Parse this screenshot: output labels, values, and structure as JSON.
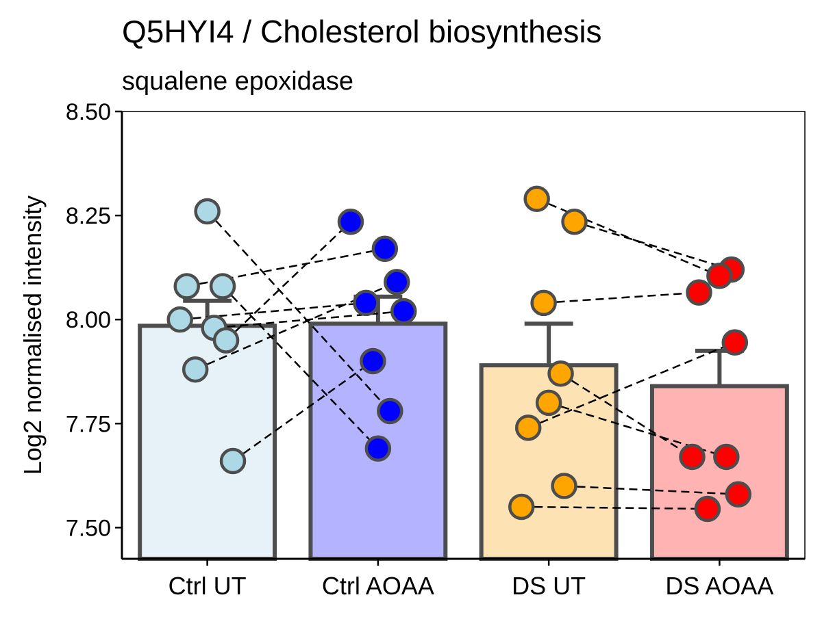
{
  "chart_data": {
    "type": "bar",
    "title": "Q5HYI4 / Cholesterol biosynthesis",
    "subtitle": "squalene epoxidase",
    "ylabel": "Log2 normalised intensity",
    "xlabel": "",
    "ylim": [
      7.425,
      8.5
    ],
    "yticks": [
      7.5,
      7.75,
      8.0,
      8.25,
      8.5
    ],
    "ytick_labels": [
      "7.50",
      "7.75",
      "8.00",
      "8.25",
      "8.50"
    ],
    "categories": [
      "Ctrl UT",
      "Ctrl AOAA",
      "DS UT",
      "DS AOAA"
    ],
    "bar_colors": [
      "#e6f2f8",
      "#b3b3ff",
      "#fde3b3",
      "#ffb3b3"
    ],
    "point_colors": [
      "#add8e6",
      "#0000ff",
      "#ffa500",
      "#ff0000"
    ],
    "bar_values": [
      7.985,
      7.99,
      7.89,
      7.84
    ],
    "error_upper": [
      8.045,
      8.055,
      7.99,
      7.925
    ],
    "points": [
      [
        8.26,
        8.08,
        8.08,
        8.0,
        7.98,
        7.95,
        7.88,
        7.66
      ],
      [
        8.235,
        8.17,
        8.09,
        8.04,
        8.02,
        7.9,
        7.78,
        7.69
      ],
      [
        8.29,
        8.235,
        8.04,
        7.87,
        7.8,
        7.74,
        7.6,
        7.55
      ],
      [
        8.12,
        8.105,
        8.065,
        7.945,
        7.67,
        7.67,
        7.58,
        7.545
      ]
    ],
    "pairings": [
      {
        "from_group": 0,
        "from_point": 0,
        "to_group": 1,
        "to_point": 6
      },
      {
        "from_group": 0,
        "from_point": 1,
        "to_group": 1,
        "to_point": 1
      },
      {
        "from_group": 0,
        "from_point": 2,
        "to_group": 1,
        "to_point": 7
      },
      {
        "from_group": 0,
        "from_point": 3,
        "to_group": 1,
        "to_point": 3
      },
      {
        "from_group": 0,
        "from_point": 4,
        "to_group": 1,
        "to_point": 4
      },
      {
        "from_group": 0,
        "from_point": 5,
        "to_group": 1,
        "to_point": 0
      },
      {
        "from_group": 0,
        "from_point": 6,
        "to_group": 1,
        "to_point": 2
      },
      {
        "from_group": 0,
        "from_point": 7,
        "to_group": 1,
        "to_point": 5
      },
      {
        "from_group": 2,
        "from_point": 0,
        "to_group": 3,
        "to_point": 1
      },
      {
        "from_group": 2,
        "from_point": 1,
        "to_group": 3,
        "to_point": 0
      },
      {
        "from_group": 2,
        "from_point": 2,
        "to_group": 3,
        "to_point": 2
      },
      {
        "from_group": 2,
        "from_point": 3,
        "to_group": 3,
        "to_point": 4
      },
      {
        "from_group": 2,
        "from_point": 4,
        "to_group": 3,
        "to_point": 5
      },
      {
        "from_group": 2,
        "from_point": 5,
        "to_group": 3,
        "to_point": 3
      },
      {
        "from_group": 2,
        "from_point": 6,
        "to_group": 3,
        "to_point": 6
      },
      {
        "from_group": 2,
        "from_point": 7,
        "to_group": 3,
        "to_point": 7
      }
    ]
  }
}
